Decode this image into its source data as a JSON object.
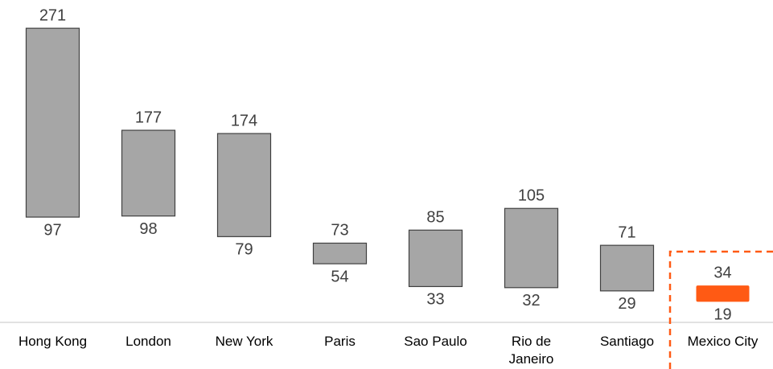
{
  "chart_data": {
    "type": "range_bar",
    "categories": [
      "Hong Kong",
      "London",
      "New York",
      "Paris",
      "Sao Paulo",
      "Rio de Janeiro",
      "Santiago",
      "Mexico City"
    ],
    "high": [
      271,
      177,
      174,
      73,
      85,
      105,
      71,
      34
    ],
    "low": [
      97,
      98,
      79,
      54,
      33,
      32,
      29,
      19
    ],
    "colors": [
      "#a6a6a6",
      "#a6a6a6",
      "#a6a6a6",
      "#a6a6a6",
      "#a6a6a6",
      "#a6a6a6",
      "#a6a6a6",
      "#ff5a14"
    ],
    "ylim": [
      0,
      300
    ]
  }
}
